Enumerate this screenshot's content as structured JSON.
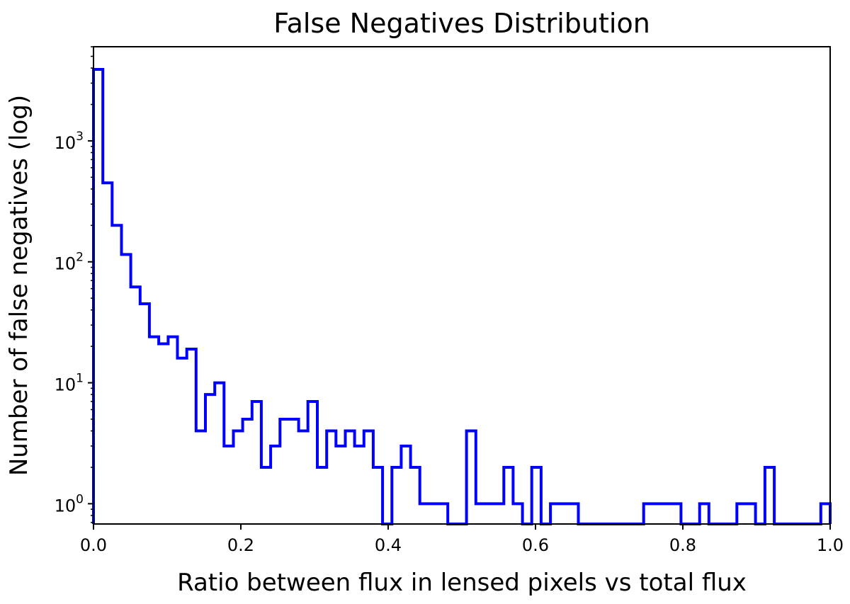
{
  "chart_data": {
    "type": "histogram-step",
    "title": "False Negatives Distribution",
    "xlabel": "Ratio between flux in lensed pixels vs total flux",
    "ylabel": "Number of false negatives (log)",
    "xlim": [
      0.0,
      1.0
    ],
    "ylim": [
      0.68,
      6000
    ],
    "yscale": "log",
    "grid": false,
    "x_ticks": [
      {
        "value": 0.0,
        "label": "0.0"
      },
      {
        "value": 0.2,
        "label": "0.2"
      },
      {
        "value": 0.4,
        "label": "0.4"
      },
      {
        "value": 0.6,
        "label": "0.6"
      },
      {
        "value": 0.8,
        "label": "0.8"
      },
      {
        "value": 1.0,
        "label": "1.0"
      }
    ],
    "y_ticks": [
      {
        "value": 1,
        "base": "10",
        "exp": "0"
      },
      {
        "value": 10,
        "base": "10",
        "exp": "1"
      },
      {
        "value": 100,
        "base": "10",
        "exp": "2"
      },
      {
        "value": 1000,
        "base": "10",
        "exp": "3"
      }
    ],
    "bin_edges": [
      0.0,
      0.0127,
      0.0253,
      0.038,
      0.0506,
      0.0633,
      0.0759,
      0.0886,
      0.1013,
      0.1139,
      0.1266,
      0.1392,
      0.1519,
      0.1646,
      0.1772,
      0.1899,
      0.2025,
      0.2152,
      0.2278,
      0.2405,
      0.2532,
      0.2658,
      0.2785,
      0.2911,
      0.3038,
      0.3165,
      0.3291,
      0.3418,
      0.3544,
      0.3671,
      0.3797,
      0.3924,
      0.4051,
      0.4177,
      0.4304,
      0.443,
      0.4557,
      0.4684,
      0.481,
      0.4937,
      0.5063,
      0.519,
      0.5316,
      0.5443,
      0.557,
      0.5696,
      0.5823,
      0.5949,
      0.6076,
      0.6203,
      0.6329,
      0.6456,
      0.6582,
      0.6709,
      0.6835,
      0.6962,
      0.7089,
      0.7215,
      0.7342,
      0.7468,
      0.7595,
      0.7722,
      0.7848,
      0.7975,
      0.8101,
      0.8228,
      0.8354,
      0.8481,
      0.8608,
      0.8734,
      0.8861,
      0.8987,
      0.9114,
      0.9241,
      0.9367,
      0.9494,
      0.962,
      0.9747,
      0.9873,
      1.0
    ],
    "counts": [
      3900,
      450,
      200,
      115,
      62,
      45,
      24,
      21,
      24,
      16,
      19,
      4,
      8,
      10,
      3,
      4,
      5,
      7,
      2,
      3,
      5,
      5,
      4,
      7,
      2,
      4,
      3,
      4,
      3,
      4,
      2,
      0,
      2,
      3,
      2,
      1,
      1,
      1,
      0,
      0,
      4,
      1,
      1,
      1,
      2,
      1,
      0,
      2,
      0,
      1,
      1,
      1,
      0,
      0,
      0,
      0,
      0,
      0,
      0,
      1,
      1,
      1,
      1,
      0,
      0,
      1,
      0,
      0,
      0,
      1,
      1,
      0,
      2,
      0,
      0,
      0,
      0,
      0,
      1
    ],
    "line_color": "#0000ff"
  }
}
